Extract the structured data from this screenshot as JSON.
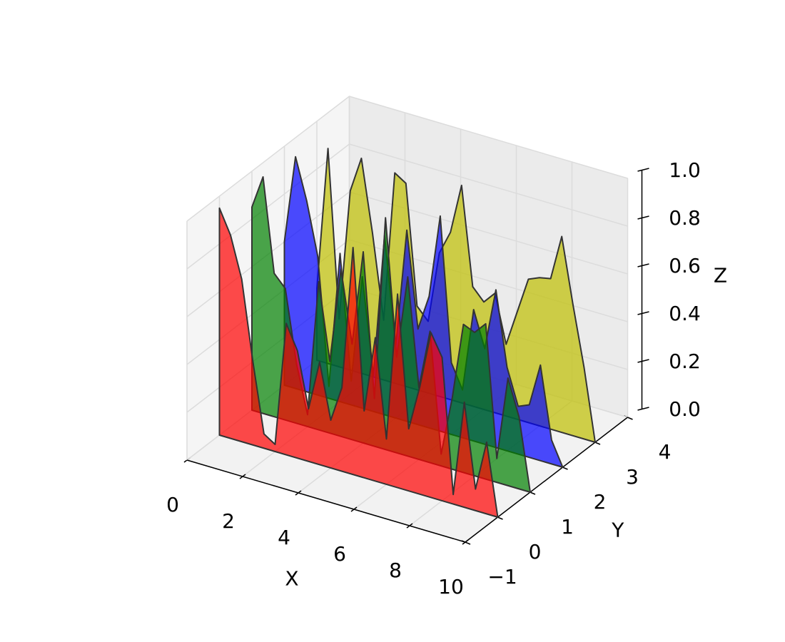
{
  "chart_data": {
    "type": "polygon3d",
    "x": [
      0,
      0.4,
      0.8,
      1.2,
      1.6,
      2,
      2.4,
      2.8,
      3.2,
      3.6,
      4,
      4.4,
      4.8,
      5.2,
      5.6,
      6,
      6.4,
      6.8,
      7.2,
      7.6,
      8,
      8.4,
      8.8,
      9.2,
      9.6,
      10
    ],
    "series": [
      {
        "y": 0,
        "color": "#ff0000",
        "values": [
          0.95,
          0.85,
          0.68,
          0.35,
          0.06,
          0.03,
          0.55,
          0.45,
          0.22,
          0.43,
          0.2,
          0.35,
          0.95,
          0.28,
          0.6,
          0.19,
          0.81,
          0.26,
          0.45,
          0.69,
          0.6,
          0.04,
          0.44,
          0.09,
          0.3,
          0
        ]
      },
      {
        "y": 1,
        "color": "#008000",
        "values": [
          0.85,
          0.99,
          0.6,
          0.55,
          0.25,
          0.05,
          0.62,
          0.3,
          0.7,
          0.4,
          0.8,
          0.2,
          0.97,
          0.4,
          0.75,
          0.3,
          0.55,
          0.05,
          0.3,
          0.62,
          0.6,
          0.65,
          0.1,
          0.45,
          0.3,
          0
        ]
      },
      {
        "y": 2,
        "color": "#0000ff",
        "values": [
          0.6,
          0.97,
          0.8,
          0.58,
          0.05,
          0.62,
          0.1,
          0.55,
          0.15,
          0.75,
          0.3,
          0.8,
          0.4,
          0.55,
          0.9,
          0.3,
          0.2,
          0.55,
          0.4,
          0.66,
          0.35,
          0.2,
          0.22,
          0.4,
          0.1,
          0
        ]
      },
      {
        "y": 3,
        "color": "#bfbf00",
        "values": [
          0.3,
          0.9,
          0.2,
          0.75,
          0.9,
          0.6,
          0.25,
          0.88,
          0.85,
          0.35,
          0.3,
          0.6,
          0.7,
          0.91,
          0.5,
          0.45,
          0.5,
          0.3,
          0.45,
          0.6,
          0.62,
          0.63,
          0.82,
          0.55,
          0.3,
          0
        ]
      }
    ],
    "alpha": 0.7,
    "xlim": [
      0,
      10
    ],
    "ylim": [
      -1,
      4
    ],
    "zlim": [
      0,
      1
    ],
    "xticks": [
      0,
      2,
      4,
      6,
      8,
      10
    ],
    "yticks": [
      {
        "value": -1,
        "label": "−1"
      },
      0,
      1,
      2,
      3,
      4
    ],
    "zticks": [
      {
        "value": 0,
        "label": "0.0"
      },
      {
        "value": 0.2,
        "label": "0.2"
      },
      {
        "value": 0.4,
        "label": "0.4"
      },
      {
        "value": 0.6,
        "label": "0.6"
      },
      {
        "value": 0.8,
        "label": "0.8"
      },
      {
        "value": 1,
        "label": "1.0"
      }
    ],
    "xlabel": "X",
    "ylabel": "Y",
    "zlabel": "Z",
    "grid": true
  }
}
